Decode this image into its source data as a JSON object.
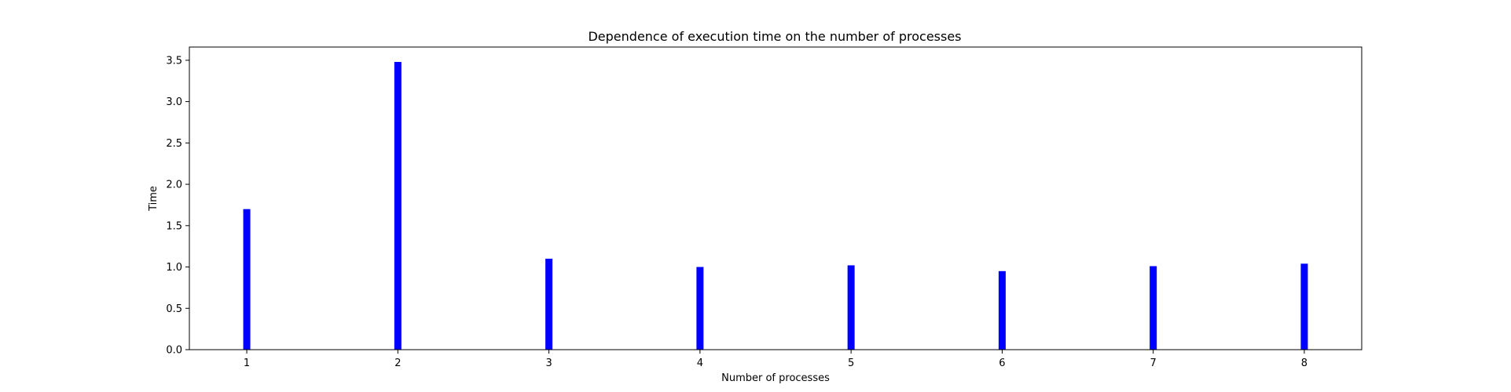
{
  "chart_data": {
    "type": "bar",
    "title": "Dependence of execution time on the number of processes",
    "xlabel": "Number of processes",
    "ylabel": "Time",
    "categories": [
      "1",
      "2",
      "3",
      "4",
      "5",
      "6",
      "7",
      "8"
    ],
    "values": [
      1.7,
      3.48,
      1.1,
      1.0,
      1.02,
      0.95,
      1.01,
      1.04
    ],
    "ylim": [
      0,
      3.66
    ],
    "xlim": [
      0.62,
      8.38
    ],
    "yticks": [
      "0.0",
      "0.5",
      "1.0",
      "1.5",
      "2.0",
      "2.5",
      "3.0",
      "3.5"
    ],
    "xticks": [
      "1",
      "2",
      "3",
      "4",
      "5",
      "6",
      "7",
      "8"
    ],
    "bar_color": "#0000ff",
    "grid": false,
    "legend": "none"
  }
}
